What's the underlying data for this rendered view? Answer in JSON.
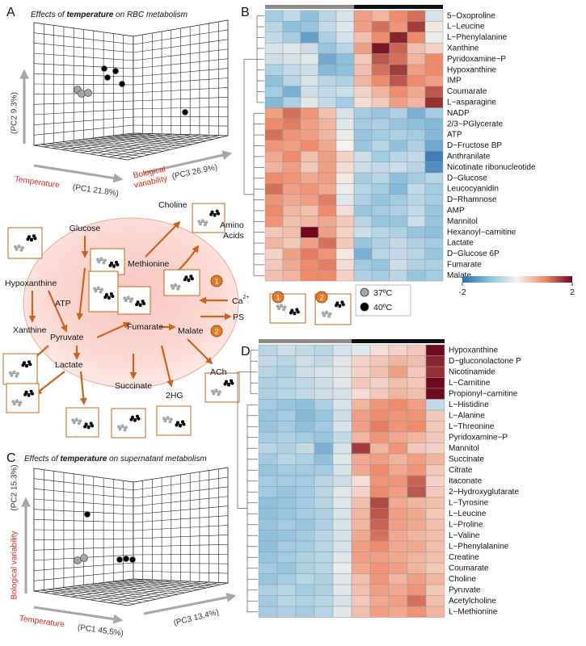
{
  "panel_labels": [
    "A",
    "B",
    "C",
    "D"
  ],
  "panel_a": {
    "title": [
      "Effects of ",
      "temperature",
      " on RBC metabolism"
    ],
    "y_axis": "(PC2  9.3%)",
    "x_axis_name": "Temperature",
    "x_axis": "(PC1 21.8%)",
    "z_axis_name": [
      "Bological",
      "variability"
    ],
    "z_axis": "(PC3 26.9%)"
  },
  "panel_c": {
    "title": [
      "Effects of ",
      "temperature",
      " on supernatant metabolism"
    ],
    "y_axis_name": "Bological variability",
    "y_axis": "(PC2  15.3%)",
    "x_axis_name": "Temperature",
    "x_axis": "(PC1 45.5%)",
    "z_axis": "(PC3 13.4%)"
  },
  "pathway": {
    "glucose": "Glucose",
    "choline": "Choline",
    "amino_acids": [
      "Amino",
      "Acids"
    ],
    "methionine": "Methionine",
    "hypoxanthine": "Hypoxanthine",
    "atp": "ATP",
    "xanthine": "Xanthine",
    "pyruvate": "Pyruvate",
    "fumarate": "Fumarate",
    "malate": "Malate",
    "lactate": "Lactate",
    "succinate": "Succinate",
    "hg": "2HG",
    "ach": "ACh",
    "ca": [
      "Ca",
      "2+"
    ],
    "ps": "PS",
    "badges": [
      "1",
      "2",
      "1",
      "2"
    ]
  },
  "legend": {
    "items": [
      {
        "name": "37ºC",
        "color": "#a6a6a6"
      },
      {
        "name": "40ºC",
        "color": "#000000"
      }
    ]
  },
  "chart_data": [
    {
      "type": "heatmap",
      "rows": [
        "5−Oxoproline",
        "L−Leucine",
        "L−Phenylalanine",
        "Xanthine",
        "Pyridoxamine−P",
        "Hypoxanthine",
        "IMP",
        "Coumarate",
        "L−asparagine",
        "NADP",
        "2/3−PGlycerate",
        "ATP",
        "D−Fructose BP",
        "Anthranilate",
        "Nicotinate ribonucleotide",
        "D−Glucose",
        "Leucocyanidin",
        "D−Rhamnose",
        "AMP",
        "Mannitol",
        "Hexanoyl−carnitine",
        "Lactate",
        "D−Glucose 6P",
        "Fumarate",
        "Malate"
      ],
      "values": [
        [
          -0.8,
          -0.5,
          -1,
          -0.6,
          -0.3,
          0.8,
          0.6,
          1,
          1.2,
          -0.3
        ],
        [
          -0.6,
          -1,
          -0.9,
          -0.5,
          -0.2,
          0.8,
          1.2,
          0.9,
          1.6,
          0.1
        ],
        [
          -0.5,
          -0.8,
          -1.4,
          -0.7,
          -0.3,
          0.5,
          1,
          1.8,
          1,
          -0.1
        ],
        [
          -0.3,
          -0.2,
          -0.4,
          -0.9,
          -0.6,
          0.8,
          1.9,
          1.3,
          0.5,
          0.3
        ],
        [
          -0.4,
          -0.3,
          -0.2,
          -1.3,
          -1,
          0.4,
          1.4,
          1.2,
          0.6,
          1
        ],
        [
          -0.7,
          -0.5,
          -0.4,
          -1.1,
          -1,
          0.5,
          1.2,
          1.6,
          0.8,
          1
        ],
        [
          -1,
          -0.6,
          -0.3,
          -0.6,
          -0.7,
          0.6,
          1,
          1.4,
          1,
          0.8
        ],
        [
          -0.8,
          -1.2,
          -0.4,
          -0.5,
          -0.4,
          0.3,
          0.6,
          1,
          0.7,
          1.4
        ],
        [
          -1.1,
          -0.7,
          -0.2,
          -0.5,
          -0.8,
          0.2,
          0.4,
          0.8,
          0.6,
          1.7
        ],
        [
          0.8,
          1.2,
          0.9,
          0.5,
          -0.3,
          -0.8,
          -0.9,
          -0.7,
          -1.2,
          -0.8
        ],
        [
          1,
          1.1,
          0.8,
          0.6,
          -0.2,
          -0.8,
          -0.7,
          -0.9,
          -1,
          -1.1
        ],
        [
          1.2,
          0.9,
          0.8,
          0.6,
          -0.1,
          -0.9,
          -0.8,
          -0.7,
          -0.8,
          -1.1
        ],
        [
          0.9,
          0.8,
          1,
          0.7,
          0,
          -0.9,
          -0.6,
          -1,
          -0.7,
          -1.3
        ],
        [
          0.7,
          1,
          0.5,
          0.8,
          0.3,
          -0.4,
          -0.8,
          -0.6,
          -0.5,
          -1.8
        ],
        [
          0.6,
          0.8,
          0.4,
          0.8,
          0.2,
          -0.4,
          -0.5,
          -0.4,
          -0.6,
          -1.6
        ],
        [
          1,
          0.9,
          0.7,
          0.8,
          0.1,
          -0.8,
          -0.6,
          -1,
          -0.8,
          -0.6
        ],
        [
          1.2,
          0.8,
          0.9,
          0.7,
          -0.1,
          -0.6,
          -0.8,
          -1.1,
          -0.5,
          -0.8
        ],
        [
          0.9,
          0.7,
          0.8,
          1.1,
          -0.2,
          -0.7,
          -0.9,
          -0.8,
          -0.6,
          -0.8
        ],
        [
          1,
          0.6,
          0.5,
          1,
          0.2,
          -0.9,
          -0.8,
          -0.7,
          -0.5,
          -0.9
        ],
        [
          0.9,
          0.5,
          0.6,
          0.7,
          0.4,
          -0.6,
          -0.9,
          -0.9,
          -0.4,
          -0.9
        ],
        [
          0.4,
          0.5,
          2,
          0.8,
          0.3,
          -0.4,
          -0.6,
          -0.7,
          -0.9,
          -1
        ],
        [
          0.6,
          0.4,
          0.8,
          1.2,
          0.4,
          -0.9,
          -0.7,
          -0.5,
          -0.7,
          -0.8
        ],
        [
          0.3,
          0.8,
          1.1,
          0.9,
          0.1,
          -1.2,
          -0.6,
          -0.5,
          -0.6,
          -0.9
        ],
        [
          0.4,
          0.7,
          1,
          1.1,
          0.2,
          -0.8,
          -0.9,
          -0.4,
          -0.7,
          -0.7
        ],
        [
          0.5,
          0.6,
          1,
          1,
          0.3,
          -0.7,
          -0.8,
          -0.6,
          -0.9,
          -0.8
        ]
      ],
      "group_colors": [
        "#8c8c8c",
        "#8c8c8c",
        "#8c8c8c",
        "#8c8c8c",
        "#8c8c8c",
        "#111111",
        "#111111",
        "#111111",
        "#111111",
        "#111111"
      ],
      "colorbar": {
        "lim": [
          -2,
          2
        ],
        "ticks": [
          -2,
          2
        ],
        "colors": [
          "#2b6cae",
          "#8fc1dd",
          "#f5f2ef",
          "#ef8a6a",
          "#6e0a1f"
        ]
      }
    },
    {
      "type": "heatmap",
      "rows": [
        "Hypoxanthine",
        "D−gluconolactone P",
        "Nicotinamide",
        "L−Carnitine",
        "Propionyl−carnitine",
        "L−Histidine",
        "L−Alanine",
        "L−Threonine",
        "Pyridoxamine−P",
        "Mannitol",
        "Succinate",
        "Citrate",
        "Itaconate",
        "2−Hydroxyglutarate",
        "L−Tyrosine",
        "L−Leucine",
        "L−Proline",
        "L−Valine",
        "L−Phenylalanine",
        "Creatine",
        "Coumarate",
        "Choline",
        "Pyruvate",
        "Acetylcholine",
        "L−Methionine"
      ],
      "values": [
        [
          -0.6,
          -0.4,
          -0.5,
          -0.6,
          -0.3,
          -0.2,
          0.2,
          0.3,
          0.4,
          2
        ],
        [
          -0.5,
          -0.6,
          -0.4,
          -0.5,
          -0.2,
          0.3,
          0.4,
          0.6,
          0.5,
          1.8
        ],
        [
          -0.6,
          -0.7,
          -0.4,
          -0.3,
          -0.2,
          0.3,
          0.5,
          0.8,
          0.4,
          1.7
        ],
        [
          -0.7,
          -0.6,
          -0.5,
          -0.4,
          -0.2,
          0.4,
          0.3,
          0.5,
          0.4,
          2
        ],
        [
          -0.7,
          -0.6,
          -0.5,
          -0.4,
          -0.3,
          0.2,
          0.4,
          0.6,
          0.5,
          2
        ],
        [
          -0.8,
          -0.9,
          -1,
          -0.7,
          -0.3,
          0.6,
          0.9,
          1,
          0.8,
          -0.5
        ],
        [
          -0.9,
          -0.8,
          -1.1,
          -0.9,
          -0.4,
          0.8,
          1,
          0.9,
          0.9,
          0.4
        ],
        [
          -0.9,
          -0.8,
          -1,
          -0.8,
          -0.3,
          0.8,
          1.1,
          0.9,
          1,
          0.4
        ],
        [
          -0.8,
          -0.7,
          -0.8,
          -0.9,
          -0.5,
          0.6,
          0.9,
          0.7,
          0.6,
          0.4
        ],
        [
          -0.6,
          -0.7,
          -0.5,
          -1.2,
          -0.3,
          1.6,
          0.6,
          0.9,
          0.4,
          0.3
        ],
        [
          -0.8,
          -0.6,
          -0.7,
          -1,
          -0.2,
          0.7,
          0.8,
          0.6,
          0.8,
          0.6
        ],
        [
          -0.9,
          -0.8,
          -0.8,
          -0.8,
          -0.3,
          0.7,
          1,
          0.7,
          0.9,
          0.4
        ],
        [
          -0.8,
          -0.8,
          -0.8,
          -0.6,
          -0.4,
          0.2,
          0.9,
          0.9,
          1.3,
          0.3
        ],
        [
          -0.8,
          -0.9,
          -0.8,
          -0.6,
          -0.2,
          0.3,
          1,
          0.8,
          1.4,
          0.4
        ],
        [
          -1,
          -0.9,
          -0.8,
          -0.6,
          -0.2,
          0.5,
          1.5,
          0.7,
          0.6,
          0.5
        ],
        [
          -1,
          -0.9,
          -0.8,
          -0.7,
          -0.3,
          0.6,
          1.4,
          0.8,
          0.7,
          0.4
        ],
        [
          -0.9,
          -0.8,
          -0.9,
          -0.7,
          -0.3,
          0.6,
          1.3,
          0.8,
          0.7,
          0.5
        ],
        [
          -1,
          -0.9,
          -0.8,
          -0.6,
          -0.3,
          0.7,
          1.2,
          0.7,
          0.6,
          0.5
        ],
        [
          -1,
          -0.8,
          -0.8,
          -0.6,
          -0.3,
          0.8,
          1,
          0.7,
          0.7,
          0.5
        ],
        [
          -0.9,
          -0.8,
          -0.7,
          -0.6,
          -0.2,
          0.8,
          0.8,
          0.7,
          0.6,
          0.5
        ],
        [
          -0.8,
          -0.9,
          -0.7,
          -0.6,
          -0.1,
          0.7,
          0.9,
          0.8,
          0.6,
          0.4
        ],
        [
          -0.9,
          -0.8,
          -0.6,
          -0.7,
          -0.2,
          0.5,
          0.9,
          0.6,
          0.8,
          0.6
        ],
        [
          -0.7,
          -0.6,
          -0.8,
          -0.7,
          -0.2,
          0.5,
          0.8,
          0.7,
          0.9,
          0.4
        ],
        [
          -0.8,
          -0.6,
          -0.7,
          -0.6,
          -0.3,
          0.4,
          0.7,
          0.8,
          1.2,
          0.5
        ],
        [
          -0.8,
          -0.7,
          -0.8,
          -0.6,
          -0.2,
          0.5,
          0.8,
          0.7,
          0.9,
          0.6
        ]
      ],
      "group_colors": [
        "#8c8c8c",
        "#8c8c8c",
        "#8c8c8c",
        "#8c8c8c",
        "#8c8c8c",
        "#111111",
        "#111111",
        "#111111",
        "#111111",
        "#111111"
      ]
    }
  ]
}
